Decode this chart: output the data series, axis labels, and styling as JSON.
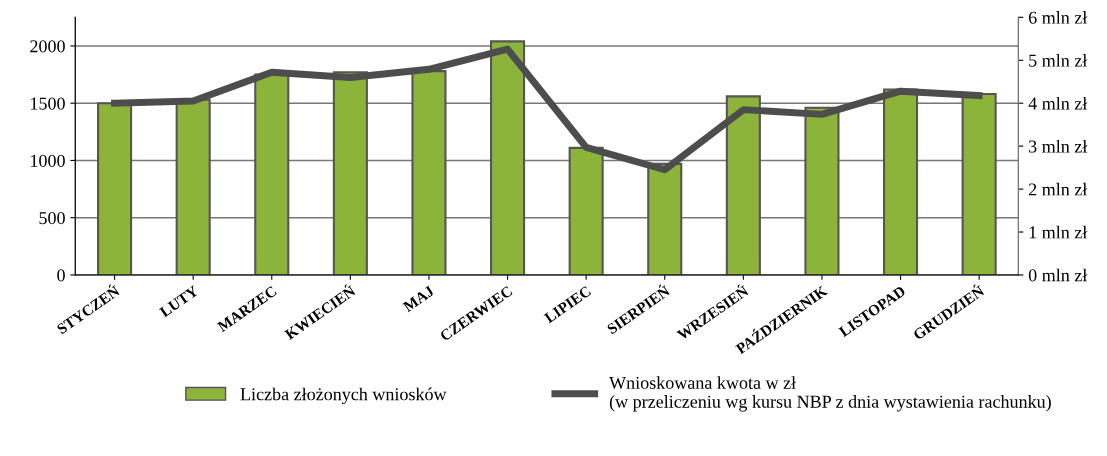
{
  "chart_data": {
    "type": "bar",
    "categories": [
      "STYCZEŃ",
      "LUTY",
      "MARZEC",
      "KWIECIEŃ",
      "MAJ",
      "CZERWIEC",
      "LIPIEC",
      "SIERPIEŃ",
      "WRZESIEŃ",
      "PAŹDZIERNIK",
      "LISTOPAD",
      "GRUDZIEŃ"
    ],
    "series": [
      {
        "name": "Liczba złożonych wniosków",
        "color": "#8cb43a",
        "values": [
          1500,
          1530,
          1750,
          1770,
          1780,
          2040,
          1110,
          970,
          1560,
          1460,
          1620,
          1580
        ]
      },
      {
        "name": "Wnioskowana kwota w zł\n(w przeliczeniu wg kursu NBP z dnia wystawienia rachunku)",
        "type": "line",
        "axis": "y2",
        "color": "#4d4d4d",
        "values": [
          4.0,
          4.05,
          4.72,
          4.6,
          4.79,
          5.26,
          2.97,
          2.45,
          3.85,
          3.74,
          4.28,
          4.18
        ]
      }
    ],
    "ylim": [
      0,
      2250
    ],
    "yticks": [
      0,
      500,
      1000,
      1500,
      2000
    ],
    "y2lim": [
      0,
      6
    ],
    "y2ticks": [
      {
        "value": 0,
        "label": "0 mln zł"
      },
      {
        "value": 1,
        "label": "1 mln zł"
      },
      {
        "value": 2,
        "label": "2 mln zł"
      },
      {
        "value": 3,
        "label": "3 mln zł"
      },
      {
        "value": 4,
        "label": "4 mln zł"
      },
      {
        "value": 5,
        "label": "5 mln zł"
      },
      {
        "value": 6,
        "label": "6 mln zł"
      }
    ],
    "grid": "y",
    "legend": "bottom",
    "marker": "none",
    "line_style": "solid"
  }
}
